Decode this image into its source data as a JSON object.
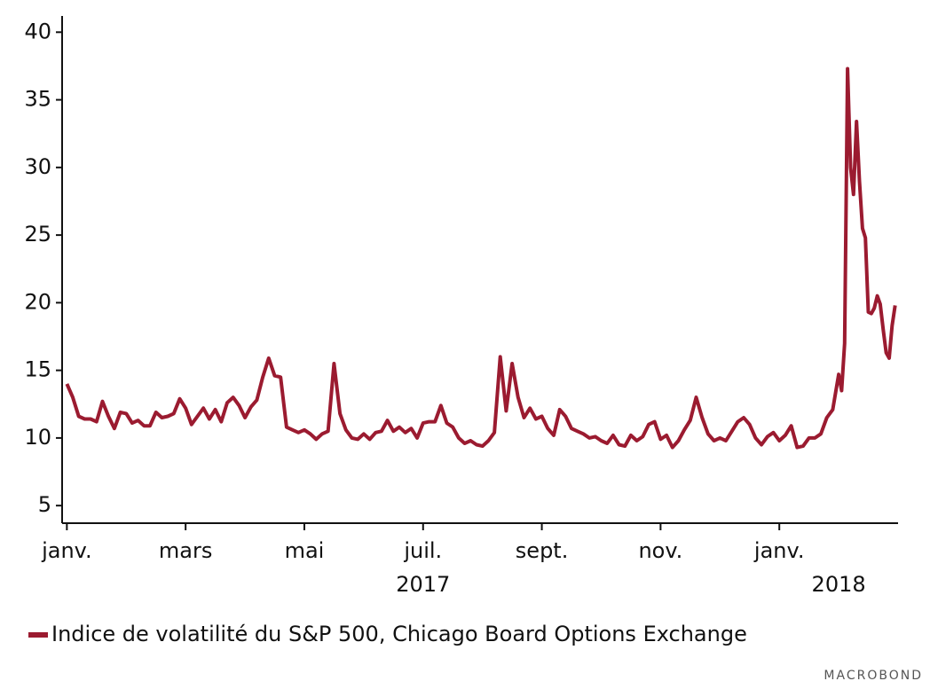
{
  "chart_data": {
    "type": "line",
    "xlim": [
      -0.08,
      14.0
    ],
    "ylim": [
      3.7,
      41.2
    ],
    "yticks": [
      5,
      10,
      15,
      20,
      25,
      30,
      35,
      40
    ],
    "xticks": [
      {
        "value": 0,
        "label": "janv."
      },
      {
        "value": 2,
        "label": "mars"
      },
      {
        "value": 4,
        "label": "mai"
      },
      {
        "value": 6,
        "label": "juil."
      },
      {
        "value": 8,
        "label": "sept."
      },
      {
        "value": 10,
        "label": "nov."
      },
      {
        "value": 12,
        "label": "janv."
      }
    ],
    "year_labels": [
      {
        "value": 6,
        "label": "2017"
      },
      {
        "value": 13,
        "label": "2018"
      }
    ],
    "credit": "MACROBOND",
    "x": [
      0,
      0.1,
      0.2,
      0.3,
      0.4,
      0.5,
      0.6,
      0.7,
      0.8,
      0.9,
      1,
      1.1,
      1.2,
      1.3,
      1.4,
      1.5,
      1.6,
      1.7,
      1.8,
      1.9,
      2,
      2.1,
      2.2,
      2.3,
      2.4,
      2.5,
      2.6,
      2.7,
      2.8,
      2.9,
      3,
      3.1,
      3.2,
      3.3,
      3.4,
      3.5,
      3.6,
      3.7,
      3.8,
      3.9,
      4,
      4.1,
      4.2,
      4.3,
      4.4,
      4.5,
      4.6,
      4.7,
      4.8,
      4.9,
      5,
      5.1,
      5.2,
      5.3,
      5.4,
      5.5,
      5.6,
      5.7,
      5.8,
      5.9,
      6,
      6.1,
      6.2,
      6.3,
      6.4,
      6.5,
      6.6,
      6.7,
      6.8,
      6.9,
      7,
      7.1,
      7.2,
      7.3,
      7.4,
      7.5,
      7.6,
      7.7,
      7.8,
      7.9,
      8,
      8.1,
      8.2,
      8.3,
      8.4,
      8.5,
      8.6,
      8.7,
      8.8,
      8.9,
      9,
      9.1,
      9.2,
      9.3,
      9.4,
      9.5,
      9.6,
      9.7,
      9.8,
      9.9,
      10,
      10.1,
      10.2,
      10.3,
      10.4,
      10.5,
      10.6,
      10.7,
      10.8,
      10.9,
      11,
      11.1,
      11.2,
      11.3,
      11.4,
      11.5,
      11.6,
      11.7,
      11.8,
      11.9,
      12,
      12.1,
      12.2,
      12.3,
      12.4,
      12.5,
      12.6,
      12.7,
      12.8,
      12.9,
      13,
      13.05,
      13.1,
      13.15,
      13.2,
      13.25,
      13.3,
      13.35,
      13.4,
      13.45,
      13.5,
      13.55,
      13.6,
      13.65,
      13.7,
      13.75,
      13.8,
      13.85,
      13.9,
      13.95
    ],
    "series": [
      {
        "name": "Indice de volatilité du S&P 500, Chicago Board Options Exchange",
        "color": "#9b1b30",
        "values": [
          14.0,
          13.0,
          11.6,
          11.4,
          11.4,
          11.2,
          12.7,
          11.6,
          10.7,
          11.9,
          11.8,
          11.1,
          11.3,
          10.9,
          10.9,
          11.9,
          11.5,
          11.6,
          11.8,
          12.9,
          12.2,
          11.0,
          11.6,
          12.2,
          11.4,
          12.1,
          11.2,
          12.6,
          13.0,
          12.4,
          11.5,
          12.3,
          12.8,
          14.5,
          15.9,
          14.6,
          14.5,
          10.8,
          10.6,
          10.4,
          10.6,
          10.3,
          9.9,
          10.3,
          10.5,
          15.5,
          11.8,
          10.6,
          10.0,
          9.9,
          10.3,
          9.9,
          10.4,
          10.5,
          11.3,
          10.5,
          10.8,
          10.4,
          10.7,
          10.0,
          11.1,
          11.2,
          11.2,
          12.4,
          11.1,
          10.8,
          10.0,
          9.6,
          9.8,
          9.5,
          9.4,
          9.8,
          10.4,
          16.0,
          12.0,
          15.5,
          13.0,
          11.5,
          12.2,
          11.4,
          11.6,
          10.7,
          10.2,
          12.1,
          11.6,
          10.7,
          10.5,
          10.3,
          10.0,
          10.1,
          9.8,
          9.6,
          10.2,
          9.5,
          9.4,
          10.2,
          9.8,
          10.1,
          11.0,
          11.2,
          9.9,
          10.2,
          9.3,
          9.8,
          10.6,
          11.3,
          13.0,
          11.5,
          10.3,
          9.8,
          10.0,
          9.8,
          10.5,
          11.2,
          11.5,
          11.0,
          10.0,
          9.5,
          10.1,
          10.4,
          9.8,
          10.2,
          10.9,
          9.3,
          9.4,
          10.0,
          10.0,
          10.3,
          11.5,
          12.1,
          14.7,
          13.5,
          17.0,
          37.3,
          30.0,
          28.0,
          33.4,
          29.0,
          25.5,
          24.8,
          19.3,
          19.2,
          19.6,
          20.5,
          19.9,
          18.0,
          16.3,
          15.9,
          18.3,
          19.8
        ]
      }
    ]
  }
}
